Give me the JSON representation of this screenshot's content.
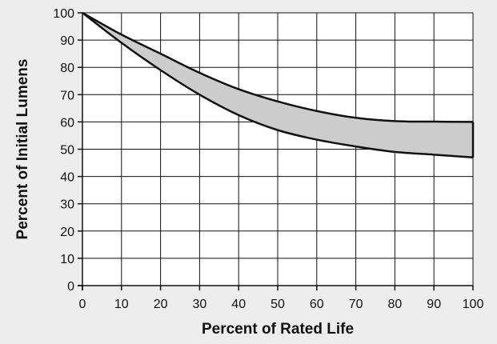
{
  "chart_data": {
    "type": "area",
    "title": "",
    "xlabel": "Percent of Rated Life",
    "ylabel": "Percent of Initial Lumens",
    "xlim": [
      0,
      100
    ],
    "ylim": [
      0,
      100
    ],
    "grid": true,
    "x_ticks": [
      0,
      10,
      20,
      30,
      40,
      50,
      60,
      70,
      80,
      90,
      100
    ],
    "y_ticks": [
      0,
      10,
      20,
      30,
      40,
      50,
      60,
      70,
      80,
      90,
      100
    ],
    "x": [
      0,
      10,
      20,
      30,
      40,
      50,
      60,
      70,
      80,
      90,
      100
    ],
    "series": [
      {
        "values": [
          100,
          92,
          85,
          78,
          72,
          67.5,
          64,
          61.5,
          60.3,
          60.1,
          60
        ]
      },
      {
        "values": [
          100,
          89,
          79,
          70,
          62.5,
          57,
          53.5,
          51,
          49,
          48,
          47
        ]
      }
    ],
    "colors": {
      "band_fill": "#cccccc",
      "line": "#111111",
      "grid": "#111111",
      "plot_background": "#ffffff",
      "page_background": "#ededed"
    }
  }
}
